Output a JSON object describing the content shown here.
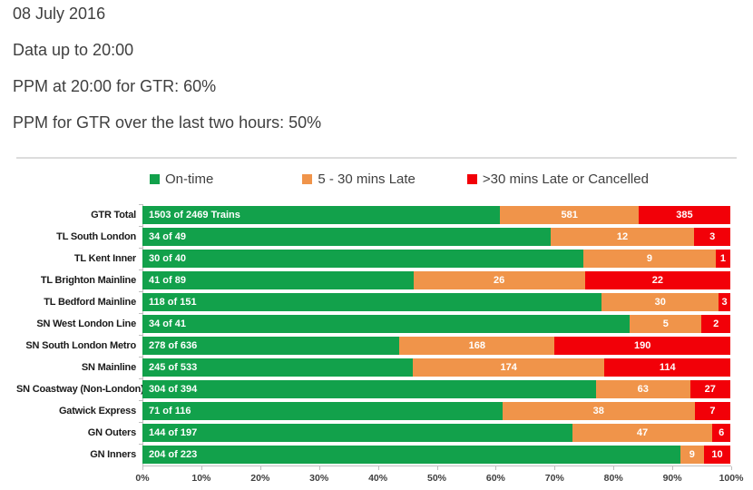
{
  "header": {
    "date": "08 July 2016",
    "data_up_to": "Data up to 20:00",
    "ppm_now": "PPM at 20:00 for GTR: 60%",
    "ppm_two_hours": "PPM for GTR over the last two hours: 50%"
  },
  "colors": {
    "on_time": "#12a14b",
    "late_5_30": "#f0944a",
    "late_30_or_cancelled": "#f20008",
    "axis_line": "#bfbfbf",
    "divider": "#dcdcdc",
    "text": "#3f3f3f"
  },
  "chart_data": {
    "type": "bar",
    "orientation": "horizontal",
    "stacked": true,
    "legend_position": "top",
    "grid": false,
    "xlim": [
      0,
      100
    ],
    "x_ticks": [
      "0%",
      "10%",
      "20%",
      "30%",
      "40%",
      "50%",
      "60%",
      "70%",
      "80%",
      "90%",
      "100%"
    ],
    "legend": [
      {
        "label": "On-time",
        "color": "#12a14b"
      },
      {
        "label": "5 - 30 mins Late",
        "color": "#f0944a"
      },
      {
        "label": ">30 mins Late or Cancelled",
        "color": "#f20008"
      }
    ],
    "rows": [
      {
        "category": "GTR Total",
        "on_time_label": "1503 of 2469 Trains",
        "on_time": 1503,
        "late_5_30": 581,
        "late_30_or_cancelled": 385,
        "total": 2469
      },
      {
        "category": "TL South London",
        "on_time_label": "34 of 49",
        "on_time": 34,
        "late_5_30": 12,
        "late_30_or_cancelled": 3,
        "total": 49
      },
      {
        "category": "TL Kent Inner",
        "on_time_label": "30 of 40",
        "on_time": 30,
        "late_5_30": 9,
        "late_30_or_cancelled": 1,
        "total": 40
      },
      {
        "category": "TL Brighton Mainline",
        "on_time_label": "41 of 89",
        "on_time": 41,
        "late_5_30": 26,
        "late_30_or_cancelled": 22,
        "total": 89
      },
      {
        "category": "TL Bedford Mainline",
        "on_time_label": "118 of 151",
        "on_time": 118,
        "late_5_30": 30,
        "late_30_or_cancelled": 3,
        "total": 151
      },
      {
        "category": "SN West London Line",
        "on_time_label": "34 of 41",
        "on_time": 34,
        "late_5_30": 5,
        "late_30_or_cancelled": 2,
        "total": 41
      },
      {
        "category": "SN South London Metro",
        "on_time_label": "278 of 636",
        "on_time": 278,
        "late_5_30": 168,
        "late_30_or_cancelled": 190,
        "total": 636
      },
      {
        "category": "SN Mainline",
        "on_time_label": "245 of 533",
        "on_time": 245,
        "late_5_30": 174,
        "late_30_or_cancelled": 114,
        "total": 533
      },
      {
        "category": "SN Coastway (Non-London)",
        "on_time_label": "304 of 394",
        "on_time": 304,
        "late_5_30": 63,
        "late_30_or_cancelled": 27,
        "total": 394
      },
      {
        "category": "Gatwick Express",
        "on_time_label": "71 of 116",
        "on_time": 71,
        "late_5_30": 38,
        "late_30_or_cancelled": 7,
        "total": 116
      },
      {
        "category": "GN Outers",
        "on_time_label": "144 of 197",
        "on_time": 144,
        "late_5_30": 47,
        "late_30_or_cancelled": 6,
        "total": 197
      },
      {
        "category": "GN Inners",
        "on_time_label": "204 of 223",
        "on_time": 204,
        "late_5_30": 9,
        "late_30_or_cancelled": 10,
        "total": 223
      }
    ]
  }
}
